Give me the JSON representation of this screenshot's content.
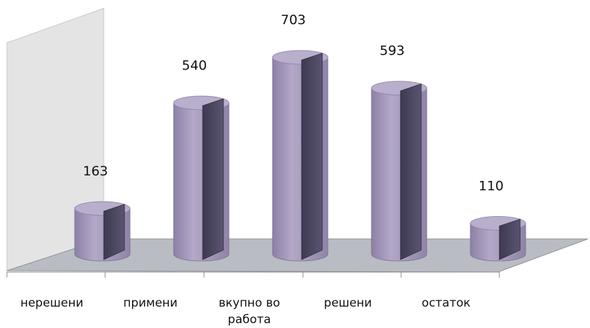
{
  "chart_data": {
    "type": "bar",
    "style": "3d-cylinder",
    "categories": [
      "нерешени",
      "примени",
      "вкупно во работа",
      "решени",
      "остаток"
    ],
    "category_lines": [
      [
        "нерешени"
      ],
      [
        "примени"
      ],
      [
        "вкупно во",
        "работа"
      ],
      [
        "решени"
      ],
      [
        "остаток"
      ]
    ],
    "values": [
      163,
      540,
      703,
      593,
      110
    ],
    "data_labels": [
      "163",
      "540",
      "703",
      "593",
      "110"
    ],
    "title": "",
    "xlabel": "",
    "ylabel": "",
    "ylim": [
      0,
      800
    ],
    "grid": false,
    "legend": "none"
  },
  "colors": {
    "cylinder_front": "#a094b8",
    "cylinder_top": "#b9aecb",
    "cylinder_inner": "#4a4560",
    "floor": "#b9bcc3",
    "back_wall": "#e3e3e3"
  }
}
